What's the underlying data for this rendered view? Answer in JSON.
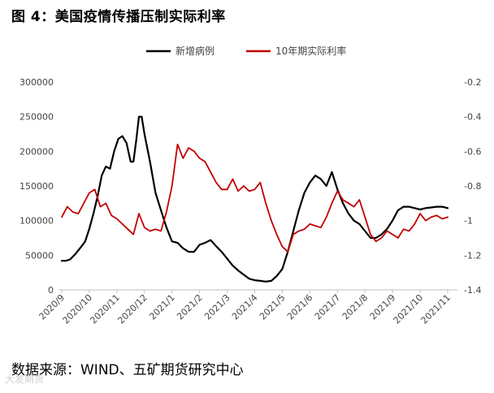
{
  "title": "图 4：美国疫情传播压制实际利率",
  "source": "数据来源：WIND、五矿期货研究中心",
  "watermark": "大发期货",
  "chart_data": {
    "type": "line",
    "xlabel": "",
    "x_ticks": [
      "2020/9",
      "2020/10",
      "2020/11",
      "2020/12",
      "2021/1",
      "2021/2",
      "2021/3",
      "2021/4",
      "2021/5",
      "2021/6",
      "2021/7",
      "2021/8",
      "2021/9",
      "2021/10",
      "2021/11"
    ],
    "y_left": {
      "ylim": [
        0,
        300000
      ],
      "ticks": [
        "0",
        "50000",
        "100000",
        "150000",
        "200000",
        "250000",
        "300000"
      ]
    },
    "y_right": {
      "ylim": [
        -1.4,
        -0.2
      ],
      "ticks": [
        "-0.2",
        "-0.4",
        "-0.6",
        "-0.8",
        "-1",
        "-1.2",
        "-1.4"
      ]
    },
    "legend_position": "top-center",
    "series": [
      {
        "name": "新增病例",
        "axis": "left",
        "color": "#000000",
        "x": [
          0,
          0.15,
          0.3,
          0.5,
          0.7,
          0.85,
          1.0,
          1.15,
          1.3,
          1.45,
          1.6,
          1.75,
          1.9,
          2.05,
          2.2,
          2.35,
          2.5,
          2.6,
          2.7,
          2.8,
          2.9,
          3.0,
          3.2,
          3.4,
          3.6,
          3.8,
          4.0,
          4.2,
          4.4,
          4.6,
          4.8,
          5.0,
          5.2,
          5.4,
          5.6,
          5.8,
          6.0,
          6.2,
          6.4,
          6.6,
          6.8,
          7.0,
          7.2,
          7.4,
          7.6,
          7.8,
          8.0,
          8.2,
          8.4,
          8.6,
          8.8,
          9.0,
          9.2,
          9.4,
          9.6,
          9.8,
          10.0,
          10.2,
          10.4,
          10.6,
          10.8,
          11.0,
          11.2,
          11.4,
          11.6,
          11.8,
          12.0,
          12.2,
          12.4,
          12.6,
          12.8,
          13.0,
          13.2,
          13.4,
          13.6,
          13.8,
          14.0
        ],
        "values": [
          42000,
          42000,
          44000,
          52000,
          62000,
          70000,
          88000,
          110000,
          135000,
          165000,
          178000,
          175000,
          200000,
          218000,
          222000,
          212000,
          185000,
          185000,
          215000,
          250000,
          250000,
          225000,
          185000,
          140000,
          115000,
          90000,
          70000,
          68000,
          60000,
          55000,
          55000,
          65000,
          68000,
          72000,
          63000,
          55000,
          45000,
          35000,
          28000,
          22000,
          16000,
          14000,
          13000,
          12000,
          13000,
          20000,
          30000,
          55000,
          85000,
          115000,
          140000,
          155000,
          165000,
          160000,
          150000,
          170000,
          145000,
          125000,
          110000,
          100000,
          95000,
          85000,
          75000,
          75000,
          80000,
          88000,
          100000,
          115000,
          120000,
          120000,
          118000,
          116000,
          118000,
          119000,
          120000,
          120000,
          118000
        ]
      },
      {
        "name": "10年期实际利率",
        "axis": "right",
        "color": "#c00000",
        "x": [
          0,
          0.2,
          0.4,
          0.6,
          0.8,
          1.0,
          1.2,
          1.4,
          1.6,
          1.8,
          2.0,
          2.2,
          2.4,
          2.6,
          2.8,
          3.0,
          3.2,
          3.4,
          3.6,
          3.8,
          4.0,
          4.2,
          4.4,
          4.6,
          4.8,
          5.0,
          5.2,
          5.4,
          5.6,
          5.8,
          6.0,
          6.2,
          6.4,
          6.6,
          6.8,
          7.0,
          7.2,
          7.4,
          7.6,
          7.8,
          8.0,
          8.2,
          8.4,
          8.6,
          8.8,
          9.0,
          9.2,
          9.4,
          9.6,
          9.8,
          10.0,
          10.2,
          10.4,
          10.6,
          10.8,
          11.0,
          11.2,
          11.4,
          11.6,
          11.8,
          12.0,
          12.2,
          12.4,
          12.6,
          12.8,
          13.0,
          13.2,
          13.4,
          13.6,
          13.8,
          14.0
        ],
        "values": [
          -0.98,
          -0.92,
          -0.95,
          -0.96,
          -0.9,
          -0.84,
          -0.82,
          -0.92,
          -0.9,
          -0.97,
          -0.99,
          -1.02,
          -1.05,
          -1.08,
          -0.96,
          -1.04,
          -1.06,
          -1.05,
          -1.06,
          -0.95,
          -0.8,
          -0.56,
          -0.64,
          -0.58,
          -0.6,
          -0.64,
          -0.66,
          -0.72,
          -0.78,
          -0.82,
          -0.82,
          -0.76,
          -0.83,
          -0.8,
          -0.83,
          -0.82,
          -0.78,
          -0.9,
          -1.0,
          -1.08,
          -1.15,
          -1.18,
          -1.08,
          -1.06,
          -1.05,
          -1.02,
          -1.03,
          -1.04,
          -0.98,
          -0.9,
          -0.83,
          -0.88,
          -0.9,
          -0.92,
          -0.88,
          -0.98,
          -1.08,
          -1.12,
          -1.1,
          -1.06,
          -1.08,
          -1.1,
          -1.05,
          -1.06,
          -1.02,
          -0.96,
          -1.0,
          -0.98,
          -0.97,
          -0.99,
          -0.98
        ]
      }
    ]
  }
}
